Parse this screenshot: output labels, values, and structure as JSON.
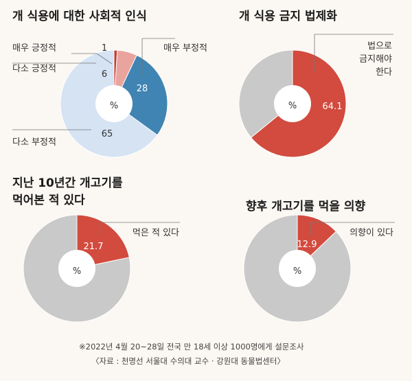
{
  "chart_data": [
    {
      "type": "pie",
      "title": "개 식용에 대한 사회적 인식",
      "categories": [
        "매우 긍정적",
        "다소 긍정적",
        "매우 부정적",
        "다소 부정적"
      ],
      "values": [
        1,
        6,
        28,
        65
      ],
      "center_label": "%",
      "colors": [
        "#c43b33",
        "#e9a49d",
        "#3f84b2",
        "#d5e3f3"
      ]
    },
    {
      "type": "pie",
      "title": "개 식용 금지 법제화",
      "categories": [
        "법으로 금지해야 한다",
        ""
      ],
      "values": [
        64.1,
        35.9
      ],
      "center_label": "%",
      "colors": [
        "#d24b3e",
        "#c9c9c9"
      ]
    },
    {
      "type": "pie",
      "title": "지난 10년간 개고기를 먹어본 적 있다",
      "categories": [
        "먹은 적 있다",
        ""
      ],
      "values": [
        21.7,
        78.3
      ],
      "center_label": "%",
      "colors": [
        "#d24b3e",
        "#c9c9c9"
      ]
    },
    {
      "type": "pie",
      "title": "향후 개고기를 먹을 의향",
      "categories": [
        "의향이 있다",
        ""
      ],
      "values": [
        12.9,
        87.1
      ],
      "center_label": "%",
      "colors": [
        "#d24b3e",
        "#c9c9c9"
      ]
    }
  ],
  "labels": {
    "c1": {
      "title": "개 식용에 대한 사회적 인식",
      "very_pos": "매우 긍정적",
      "some_pos": "다소 긍정적",
      "very_neg": "매우 부정적",
      "some_neg": "다소 부정적",
      "v_very_pos": "1",
      "v_some_pos": "6",
      "v_very_neg": "28",
      "v_some_neg": "65",
      "pct": "%"
    },
    "c2": {
      "title": "개 식용 금지 법제화",
      "label_l1": "법으로",
      "label_l2": "금지해야",
      "label_l3": "한다",
      "value": "64.1",
      "pct": "%"
    },
    "c3": {
      "title_l1": "지난 10년간 개고기를",
      "title_l2": "먹어본 적 있다",
      "label": "먹은 적 있다",
      "value": "21.7",
      "pct": "%"
    },
    "c4": {
      "title": "향후 개고기를 먹을 의향",
      "label": "의향이 있다",
      "value": "12.9",
      "pct": "%"
    }
  },
  "footer": {
    "note": "※2022년 4월 20~28일 전국 만 18세 이상 1000명에게 설문조사",
    "source": "〈자료 : 천명선 서울대 수의대 교수 · 강원대 동물법센터〉"
  }
}
